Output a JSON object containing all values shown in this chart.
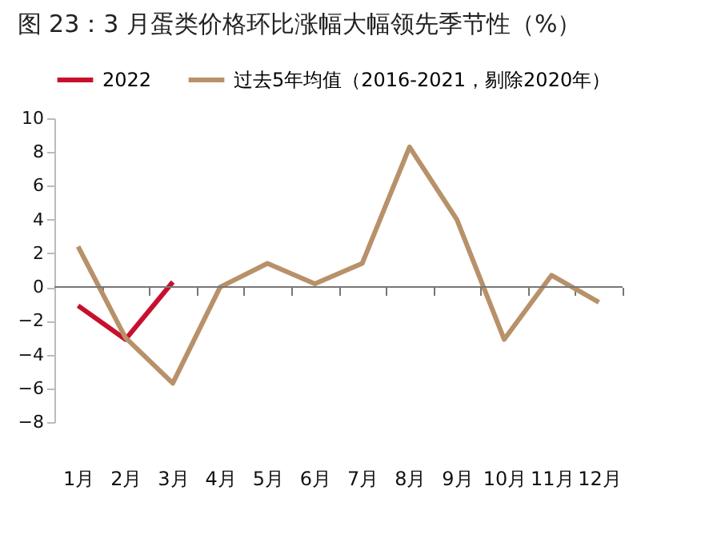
{
  "chart_data": {
    "type": "line",
    "title": "图 23：3 月蛋类价格环比涨幅大幅领先季节性（%）",
    "categories": [
      "1月",
      "2月",
      "3月",
      "4月",
      "5月",
      "6月",
      "7月",
      "8月",
      "9月",
      "10月",
      "11月",
      "12月"
    ],
    "series": [
      {
        "name": "2022",
        "color": "#c8102e",
        "values": [
          -1.1,
          -3.1,
          0.3,
          null,
          null,
          null,
          null,
          null,
          null,
          null,
          null,
          null
        ]
      },
      {
        "name": "过去5年均值（2016-2021，剔除2020年）",
        "color": "#b8916a",
        "values": [
          2.4,
          -3.0,
          -5.7,
          0,
          1.4,
          0.2,
          1.4,
          8.3,
          4.0,
          -3.1,
          0.7,
          -0.9
        ]
      }
    ],
    "ylim": [
      -8,
      10
    ],
    "yticks": [
      -8,
      -6,
      -4,
      -2,
      0,
      2,
      4,
      6,
      8,
      10
    ],
    "ref_lines": [
      {
        "axis": "y",
        "value": 0,
        "color": "#777777"
      }
    ],
    "grid": false,
    "legend": "top"
  }
}
